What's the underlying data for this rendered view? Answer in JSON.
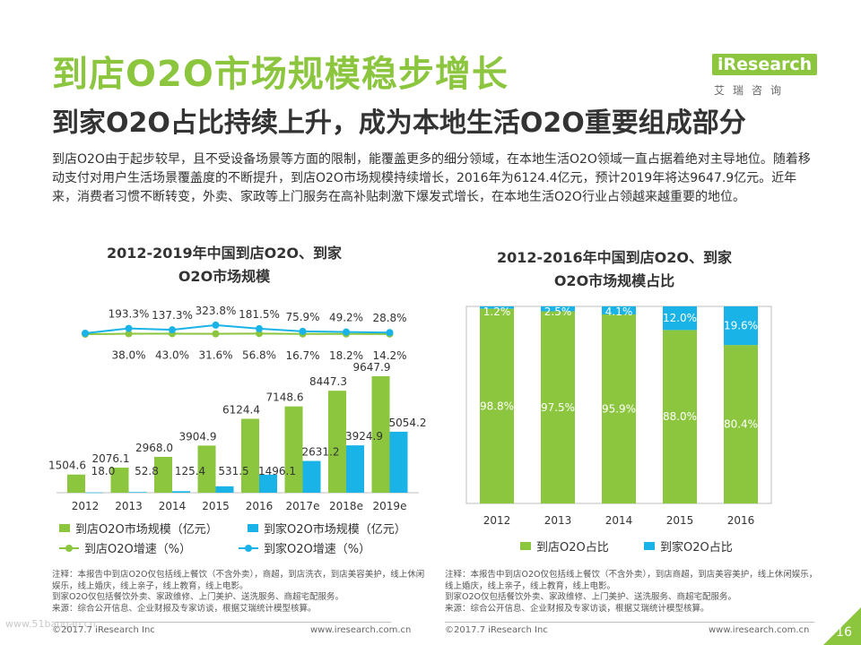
{
  "header": {
    "title": "到店O2O市场规模稳步增长",
    "subtitle": "到家O2O占比持续上升，成为本地生活O2O重要组成部分",
    "intro": "到店O2O由于起步较早，且不受设备场景等方面的限制，能覆盖更多的细分领域，在本地生活O2O领域一直占据着绝对主导地位。随着移动支付对用户生活场景覆盖度的不断提升，到店O2O市场规模持续增长，2016年为6124.4亿元，预计2019年将达9647.9亿元。近年来，消费者习惯不断转变，外卖、家政等上门服务在高补贴刺激下爆发式增长，在本地生活O2O行业占领越来越重要的地位。"
  },
  "logo": {
    "name": "iResearch",
    "sub": "艾瑞咨询"
  },
  "colors": {
    "green": "#8cc63f",
    "blue": "#1ab3e8"
  },
  "chart_data": [
    {
      "type": "bar",
      "title_line1": "2012-2019年中国到店O2O、到家",
      "title_line2": "O2O市场规模",
      "categories": [
        "2012",
        "2013",
        "2014",
        "2015",
        "2016",
        "2017e",
        "2018e",
        "2019e"
      ],
      "series": [
        {
          "name": "到店O2O市场规模（亿元）",
          "kind": "bar",
          "color": "#8cc63f",
          "values": [
            1504.6,
            2076.1,
            2968.0,
            3904.9,
            6124.4,
            7148.6,
            8447.3,
            9647.9
          ],
          "labels": [
            "1504.6",
            "2076.1",
            "2968.0",
            "3904.9",
            "6124.4",
            "7148.6",
            "8447.3",
            "9647.9"
          ]
        },
        {
          "name": "到家O2O市场规模（亿元）",
          "kind": "bar",
          "color": "#1ab3e8",
          "values": [
            18.0,
            52.8,
            125.4,
            531.5,
            1496.1,
            2631.2,
            3924.9,
            5054.2
          ],
          "labels": [
            "18.0",
            "52.8",
            "125.4",
            "531.5",
            "1496.1",
            "2631.2",
            "3924.9",
            "5054.2"
          ]
        },
        {
          "name": "到店O2O增速（%）",
          "kind": "line",
          "color": "#8cc63f",
          "values": [
            null,
            38.0,
            43.0,
            31.6,
            56.8,
            16.7,
            18.2,
            14.2
          ],
          "labels": [
            "",
            "38.0%",
            "43.0%",
            "31.6%",
            "56.8%",
            "16.7%",
            "18.2%",
            "14.2%"
          ]
        },
        {
          "name": "到家O2O增速（%）",
          "kind": "line",
          "color": "#1ab3e8",
          "values": [
            null,
            193.3,
            137.3,
            323.8,
            181.5,
            75.9,
            49.2,
            28.8
          ],
          "labels": [
            "",
            "193.3%",
            "137.3%",
            "323.8%",
            "181.5%",
            "75.9%",
            "49.2%",
            "28.8%"
          ]
        }
      ]
    },
    {
      "type": "bar",
      "stacked": true,
      "title_line1": "2012-2016年中国到店O2O、到家",
      "title_line2": "O2O市场规模占比",
      "categories": [
        "2012",
        "2013",
        "2014",
        "2015",
        "2016"
      ],
      "ylim": [
        0,
        100
      ],
      "series": [
        {
          "name": "到店O2O占比",
          "color": "#8cc63f",
          "values": [
            98.8,
            97.5,
            95.9,
            88.0,
            80.4
          ],
          "labels": [
            "98.8%",
            "97.5%",
            "95.9%",
            "88.0%",
            "80.4%"
          ]
        },
        {
          "name": "到家O2O占比",
          "color": "#1ab3e8",
          "values": [
            1.2,
            2.5,
            4.1,
            12.0,
            19.6
          ],
          "labels": [
            "1.2%",
            "2.5%",
            "4.1%",
            "12.0%",
            "19.6%"
          ]
        }
      ]
    }
  ],
  "notes": {
    "left": "注释：本报告中到店O2O仅包括线上餐饮（不含外卖），商超，到店洗衣，到店美容美护，线上休闲娱乐，线上婚庆，线上亲子，线上教育，线上电影。\n到家O2O仅包括餐饮外卖、家政维修、上门美护、送洗服务、商超宅配服务。\n来源：综合公开信息、企业财报及专家访谈，根据艾瑞统计模型核算。",
    "right": "注释：本报告中到店O2O仅包括线上餐饮（不含外卖），到店商超，到店美容美护，线上休闲娱乐，线上婚庆，线上亲子，线上教育，线上电影。\n到家O2O仅包括餐饮外卖、家政维修、上门美护、送洗服务、商超宅配服务。\n来源：综合公开信息、企业财报及专家访谈，根据艾瑞统计模型核算。"
  },
  "footer": {
    "copyright_left": "©2017.7 iResearch Inc",
    "url_left": "www.iresearch.com.cn",
    "copyright_right": "©2017.7 iResearch Inc",
    "url_right": "www.iresearch.com.cn",
    "watermark": "www.51baogao.cn",
    "page": "16"
  }
}
